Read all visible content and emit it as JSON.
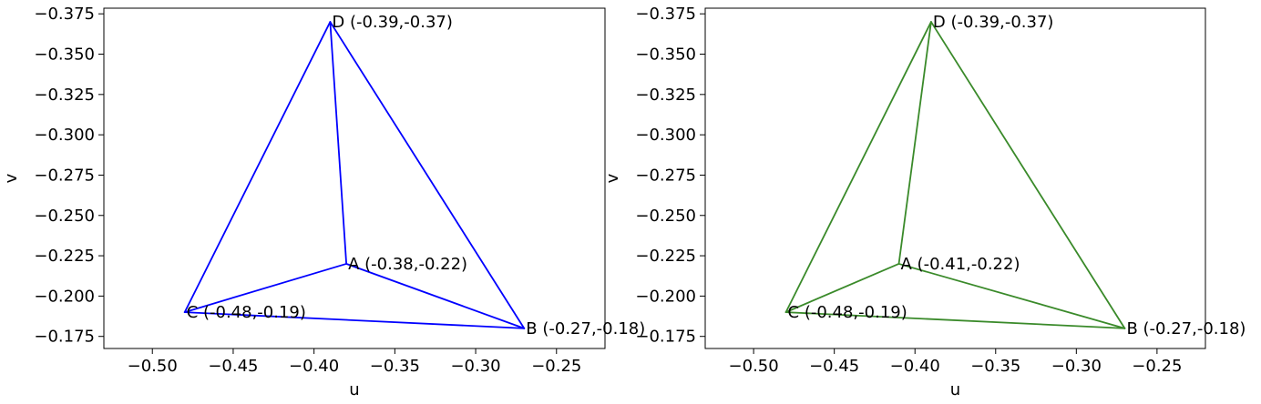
{
  "chart_data": [
    {
      "type": "line",
      "title": "",
      "xlabel": "u",
      "ylabel": "v",
      "xlim": [
        -0.53,
        -0.22
      ],
      "ylim": [
        -0.1675,
        -0.3785
      ],
      "y_axis_inverted": true,
      "grid": false,
      "color": "#0000ff",
      "x_ticks": [
        -0.5,
        -0.45,
        -0.4,
        -0.35,
        -0.3,
        -0.25
      ],
      "x_tick_labels": [
        "−0.50",
        "−0.45",
        "−0.40",
        "−0.35",
        "−0.30",
        "−0.25"
      ],
      "y_ticks": [
        -0.375,
        -0.35,
        -0.325,
        -0.3,
        -0.275,
        -0.25,
        -0.225,
        -0.2,
        -0.175
      ],
      "y_tick_labels": [
        "−0.375",
        "−0.350",
        "−0.325",
        "−0.300",
        "−0.275",
        "−0.250",
        "−0.225",
        "−0.200",
        "−0.175"
      ],
      "points": [
        {
          "name": "A",
          "x": -0.38,
          "y": -0.22,
          "label": "A (-0.38,-0.22)"
        },
        {
          "name": "B",
          "x": -0.27,
          "y": -0.18,
          "label": "B (-0.27,-0.18)"
        },
        {
          "name": "C",
          "x": -0.48,
          "y": -0.19,
          "label": "C (-0.48,-0.19)"
        },
        {
          "name": "D",
          "x": -0.39,
          "y": -0.37,
          "label": "D (-0.39,-0.37)"
        }
      ],
      "edges": [
        [
          "A",
          "B"
        ],
        [
          "A",
          "C"
        ],
        [
          "A",
          "D"
        ],
        [
          "B",
          "C"
        ],
        [
          "B",
          "D"
        ],
        [
          "C",
          "D"
        ]
      ]
    },
    {
      "type": "line",
      "title": "",
      "xlabel": "u",
      "ylabel": "v",
      "xlim": [
        -0.53,
        -0.22
      ],
      "ylim": [
        -0.1675,
        -0.3785
      ],
      "y_axis_inverted": true,
      "grid": false,
      "color": "#3a8a2a",
      "x_ticks": [
        -0.5,
        -0.45,
        -0.4,
        -0.35,
        -0.3,
        -0.25
      ],
      "x_tick_labels": [
        "−0.50",
        "−0.45",
        "−0.40",
        "−0.35",
        "−0.30",
        "−0.25"
      ],
      "y_ticks": [
        -0.375,
        -0.35,
        -0.325,
        -0.3,
        -0.275,
        -0.25,
        -0.225,
        -0.2,
        -0.175
      ],
      "y_tick_labels": [
        "−0.375",
        "−0.350",
        "−0.325",
        "−0.300",
        "−0.275",
        "−0.250",
        "−0.225",
        "−0.200",
        "−0.175"
      ],
      "points": [
        {
          "name": "A",
          "x": -0.41,
          "y": -0.22,
          "label": "A (-0.41,-0.22)"
        },
        {
          "name": "B",
          "x": -0.27,
          "y": -0.18,
          "label": "B (-0.27,-0.18)"
        },
        {
          "name": "C",
          "x": -0.48,
          "y": -0.19,
          "label": "C (-0.48,-0.19)"
        },
        {
          "name": "D",
          "x": -0.39,
          "y": -0.37,
          "label": "D (-0.39,-0.37)"
        }
      ],
      "edges": [
        [
          "A",
          "B"
        ],
        [
          "A",
          "C"
        ],
        [
          "A",
          "D"
        ],
        [
          "B",
          "C"
        ],
        [
          "B",
          "D"
        ],
        [
          "C",
          "D"
        ]
      ]
    }
  ]
}
